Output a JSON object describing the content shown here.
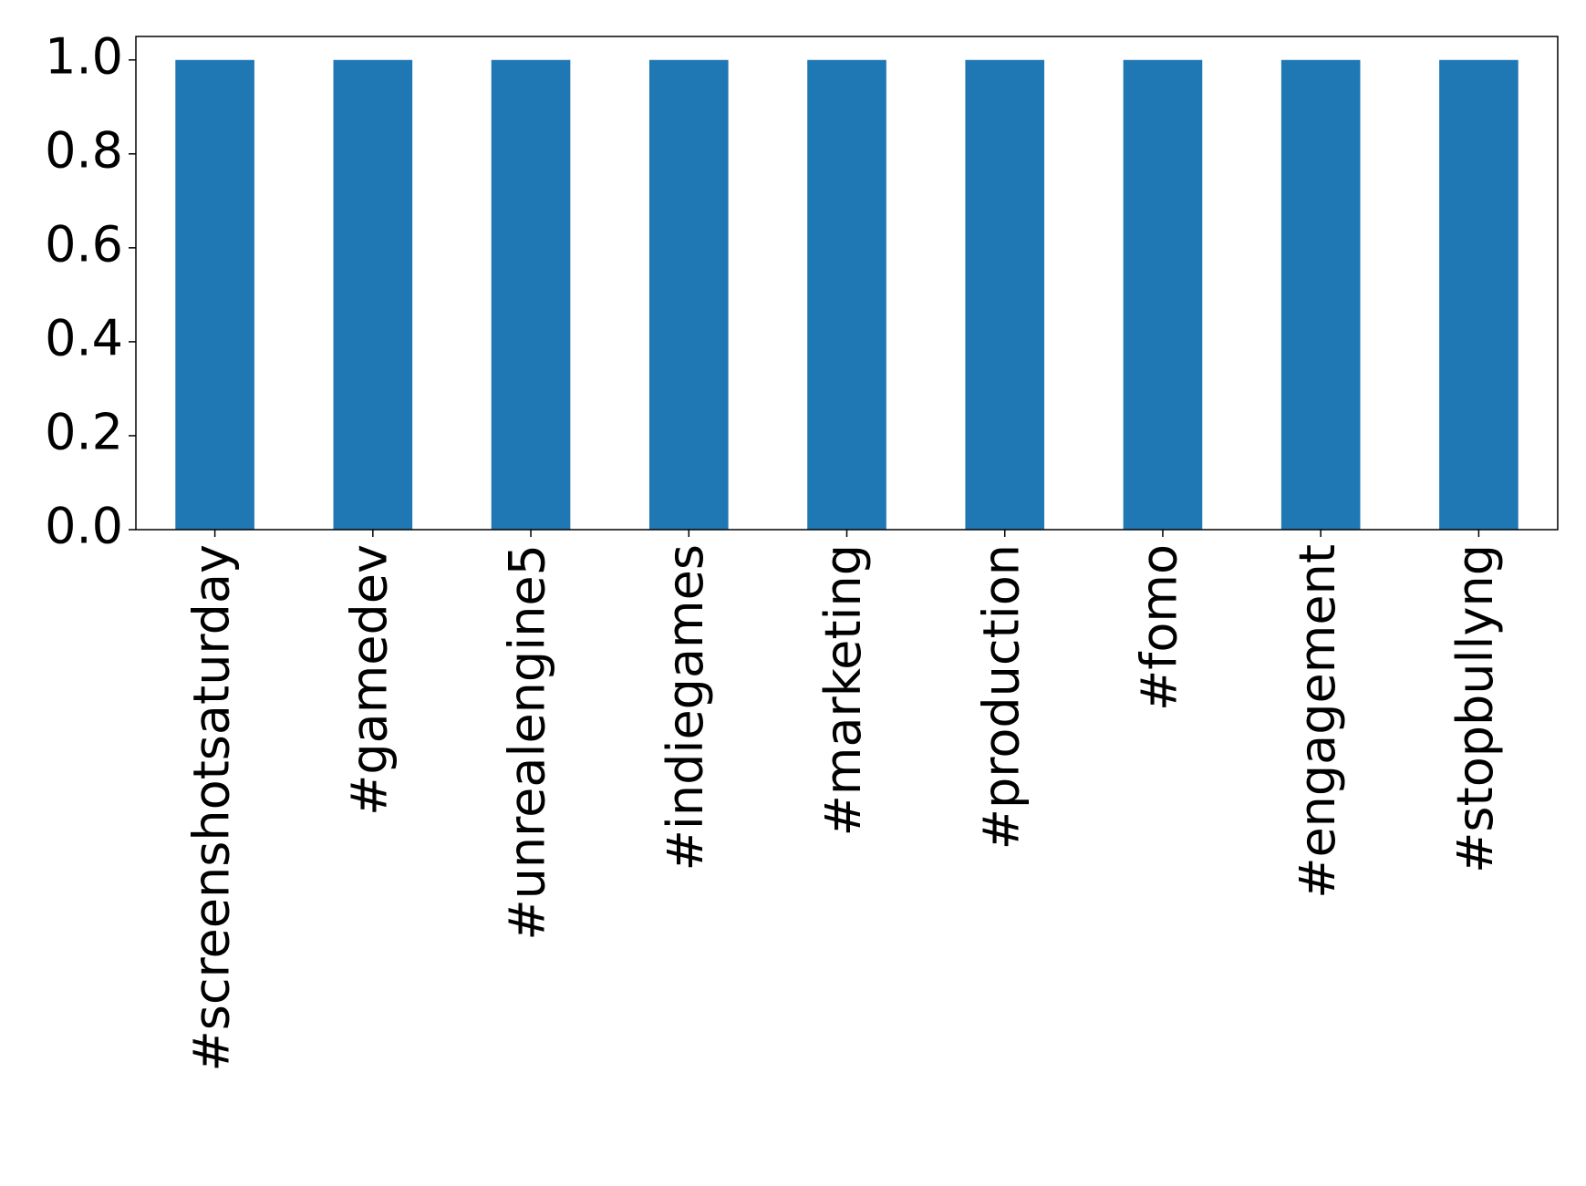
{
  "chart_data": {
    "type": "bar",
    "categories": [
      "#screenshotsaturday",
      "#gamedev",
      "#unrealengine5",
      "#indiegames",
      "#marketing",
      "#production",
      "#fomo",
      "#engagement",
      "#stopbullyng"
    ],
    "values": [
      1,
      1,
      1,
      1,
      1,
      1,
      1,
      1,
      1
    ],
    "color": "#1f77b4",
    "ylim": [
      0,
      1.05
    ],
    "yticks": [
      {
        "value": 0,
        "label": "0.0"
      },
      0.2,
      0.4,
      0.6,
      0.8,
      {
        "value": 1,
        "label": "1.0"
      }
    ],
    "grid": false
  }
}
